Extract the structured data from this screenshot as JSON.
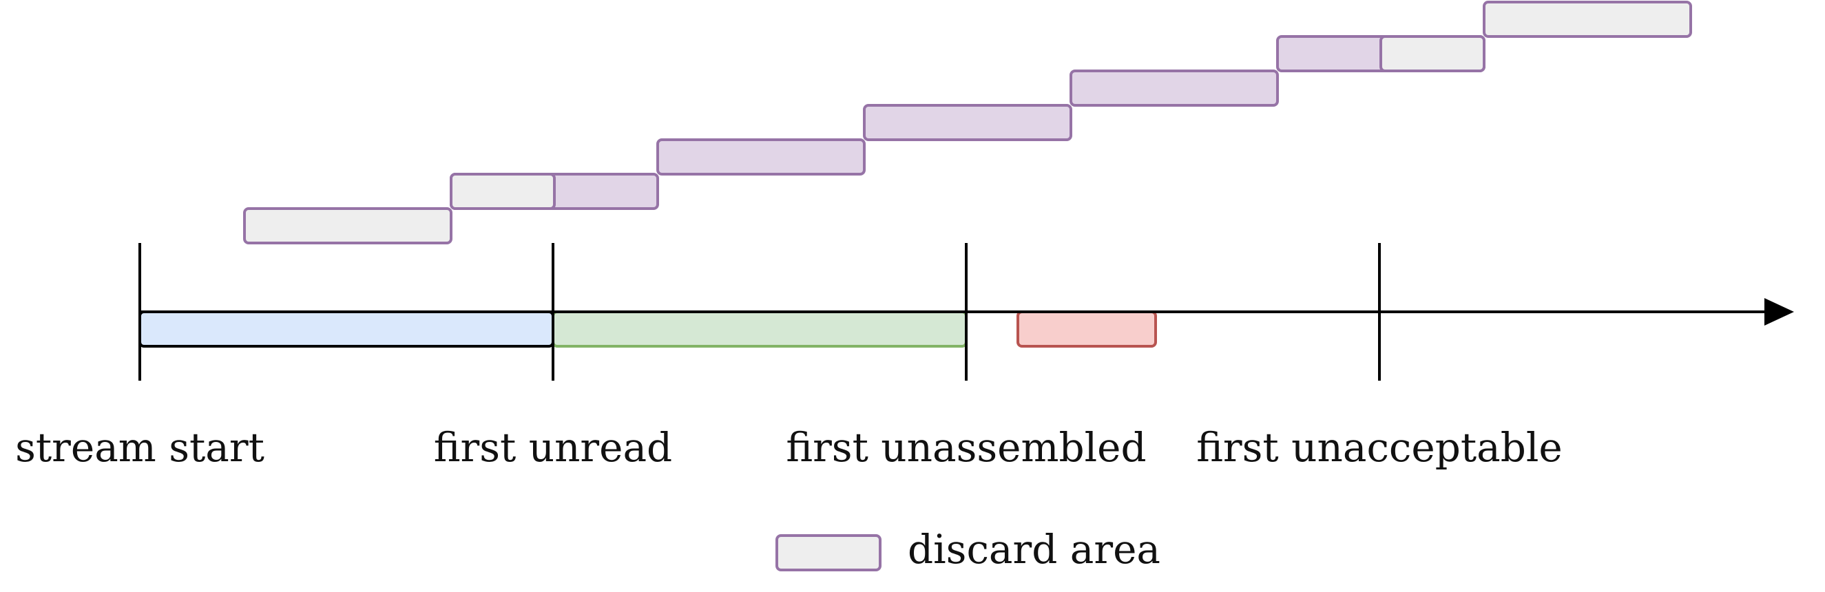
{
  "labels": {
    "stream_start": "stream start",
    "first_unread": "first unread",
    "first_unassembled": "first unassembled",
    "first_unacceptable": "first unacceptable"
  },
  "legend": {
    "discard_area": "discard area"
  },
  "colors": {
    "axis": "#000000",
    "read_region_fill": "#dae8fc",
    "read_region_stroke": "#000000",
    "assembled_region_fill": "#d5e8d4",
    "assembled_region_stroke": "#82b366",
    "pending_segment_fill": "#f8cecc",
    "pending_segment_stroke": "#b85450",
    "segment_fill": "#e1d5e7",
    "segment_stroke": "#9673a6",
    "discard_fill": "#eeeeee"
  }
}
